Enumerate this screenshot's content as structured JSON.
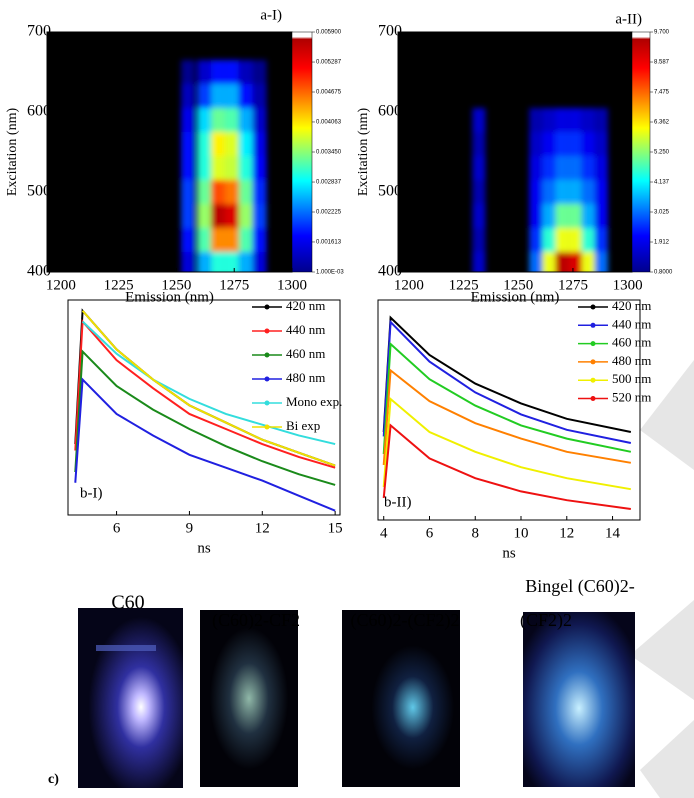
{
  "chart_data": [
    {
      "type": "heatmap",
      "title": "a-I)",
      "x_label": "Emission (nm)",
      "y_label": "Excitation (nm)",
      "xlim": [
        1194,
        1300
      ],
      "ylim": [
        400,
        700
      ],
      "xticks": [
        1200,
        1225,
        1250,
        1275,
        1300
      ],
      "yticks": [
        400,
        500,
        600,
        700
      ],
      "x": [
        1255,
        1262,
        1268,
        1274,
        1280,
        1286
      ],
      "y": [
        410,
        440,
        470,
        500,
        530,
        560,
        590,
        620,
        650
      ],
      "z": [
        [
          0.0015,
          0.0025,
          0.003,
          0.003,
          0.0025,
          0.0015
        ],
        [
          0.0018,
          0.0032,
          0.0045,
          0.0045,
          0.0032,
          0.0018
        ],
        [
          0.002,
          0.0035,
          0.0058,
          0.0055,
          0.0035,
          0.002
        ],
        [
          0.002,
          0.0033,
          0.0048,
          0.0046,
          0.0033,
          0.0019
        ],
        [
          0.0018,
          0.003,
          0.0038,
          0.0037,
          0.003,
          0.0017
        ],
        [
          0.0018,
          0.003,
          0.004,
          0.0038,
          0.0028,
          0.0016
        ],
        [
          0.0016,
          0.0027,
          0.0033,
          0.0032,
          0.0025,
          0.0014
        ],
        [
          0.0013,
          0.002,
          0.0025,
          0.0025,
          0.0018,
          0.0012
        ],
        [
          0.001,
          0.0014,
          0.0018,
          0.0018,
          0.0013,
          0.001
        ]
      ],
      "colorbar": {
        "zlim": [
          0.001,
          0.0059
        ],
        "ticks": [
          {
            "value": 0.0059,
            "label": "0.005900"
          },
          0.005287,
          0.004675,
          0.004063,
          {
            "value": 0.00345,
            "label": "0.003450"
          },
          0.002837,
          0.002225,
          0.001613,
          {
            "value": 0.001,
            "label": "1.000E-03"
          }
        ]
      }
    },
    {
      "type": "heatmap",
      "title": "a-II)",
      "x_label": "Emission (nm)",
      "y_label": "Excitation (nm)",
      "xlim": [
        1195,
        1302
      ],
      "ylim": [
        400,
        700
      ],
      "xticks": [
        1200,
        1225,
        1250,
        1275,
        1300
      ],
      "yticks": [
        400,
        500,
        600,
        700
      ],
      "x": [
        1232,
        1258,
        1264,
        1270,
        1276,
        1282,
        1288
      ],
      "y": [
        410,
        440,
        470,
        500,
        530,
        560,
        590
      ],
      "z": [
        [
          1.5,
          3,
          6,
          9.5,
          9,
          6,
          3
        ],
        [
          1.2,
          2.5,
          4.5,
          6,
          6,
          4.5,
          2.5
        ],
        [
          1.5,
          2,
          3.5,
          5,
          5,
          3.5,
          2
        ],
        [
          1.2,
          2,
          3,
          3.5,
          3.5,
          3,
          2
        ],
        [
          1.5,
          1.8,
          2.5,
          3,
          3,
          2.5,
          1.8
        ],
        [
          1.2,
          1.5,
          2,
          2.5,
          2.5,
          2,
          1.5
        ],
        [
          1.5,
          1.2,
          1.5,
          1.8,
          1.8,
          1.5,
          1.2
        ]
      ],
      "colorbar": {
        "zlim": [
          0.8,
          9.7
        ],
        "ticks": [
          {
            "value": 9.7,
            "label": "9.700"
          },
          8.587,
          7.475,
          6.362,
          {
            "value": 5.25,
            "label": "5.250"
          },
          4.137,
          3.025,
          1.912,
          {
            "value": 0.8,
            "label": "0.8000"
          }
        ]
      }
    },
    {
      "type": "line",
      "title": "b-I)",
      "x_label": "ns",
      "xlim": [
        4,
        15.2
      ],
      "ylim": [
        0,
        1
      ],
      "xticks": [
        6,
        9,
        12,
        15
      ],
      "x": [
        4.3,
        4.6,
        6,
        7.5,
        9,
        10.5,
        12,
        13.5,
        15
      ],
      "series": [
        {
          "name": "420 nm",
          "color": "#000000",
          "values": [
            0.33,
            0.95,
            0.77,
            0.63,
            0.51,
            0.43,
            0.35,
            0.29,
            0.23
          ]
        },
        {
          "name": "440 nm",
          "color": "#ff2020",
          "values": [
            0.3,
            0.9,
            0.72,
            0.59,
            0.47,
            0.4,
            0.33,
            0.27,
            0.22
          ]
        },
        {
          "name": "460 nm",
          "color": "#1a8a1a",
          "values": [
            0.2,
            0.76,
            0.6,
            0.49,
            0.4,
            0.32,
            0.25,
            0.19,
            0.14
          ]
        },
        {
          "name": "480 nm",
          "color": "#2020e0",
          "values": [
            0.15,
            0.63,
            0.47,
            0.37,
            0.28,
            0.22,
            0.16,
            0.09,
            0.02
          ]
        },
        {
          "name": "Mono exp.",
          "color": "#33dddd",
          "values": [
            null,
            0.9,
            0.75,
            0.63,
            0.54,
            0.47,
            0.42,
            0.37,
            0.33
          ]
        },
        {
          "name": "Bi exp",
          "color": "#f0e000",
          "values": [
            null,
            0.95,
            0.77,
            0.63,
            0.51,
            0.43,
            0.35,
            0.29,
            0.23
          ]
        }
      ]
    },
    {
      "type": "line",
      "title": "b-II)",
      "x_label": "ns",
      "xlim": [
        3.75,
        15.2
      ],
      "ylim": [
        0,
        1
      ],
      "xticks": [
        4,
        6,
        8,
        10,
        12,
        14
      ],
      "x": [
        4,
        4.3,
        6,
        8,
        10,
        12,
        14.8
      ],
      "series": [
        {
          "name": "420 nm",
          "color": "#000000",
          "values": [
            0.4,
            0.92,
            0.75,
            0.62,
            0.53,
            0.46,
            0.4
          ]
        },
        {
          "name": "440 nm",
          "color": "#2020e0",
          "values": [
            0.38,
            0.9,
            0.72,
            0.58,
            0.48,
            0.41,
            0.35
          ]
        },
        {
          "name": "460 nm",
          "color": "#22cc22",
          "values": [
            0.3,
            0.8,
            0.64,
            0.52,
            0.43,
            0.37,
            0.31
          ]
        },
        {
          "name": "480 nm",
          "color": "#ff8000",
          "values": [
            0.25,
            0.68,
            0.54,
            0.44,
            0.37,
            0.31,
            0.26
          ]
        },
        {
          "name": "500 nm",
          "color": "#f0f000",
          "values": [
            0.15,
            0.55,
            0.4,
            0.31,
            0.24,
            0.19,
            0.14
          ]
        },
        {
          "name": "520 nm",
          "color": "#ee1111",
          "values": [
            0.1,
            0.43,
            0.28,
            0.19,
            0.13,
            0.09,
            0.05
          ]
        }
      ]
    }
  ],
  "photos": {
    "label": "c)",
    "items": [
      {
        "label": "C60"
      },
      {
        "label": "(C60)2-CF2"
      },
      {
        "label": "(C60)2-(CF2)2"
      },
      {
        "label": "Bingel (C60)2-",
        "label2": "(CF2)2"
      }
    ]
  }
}
